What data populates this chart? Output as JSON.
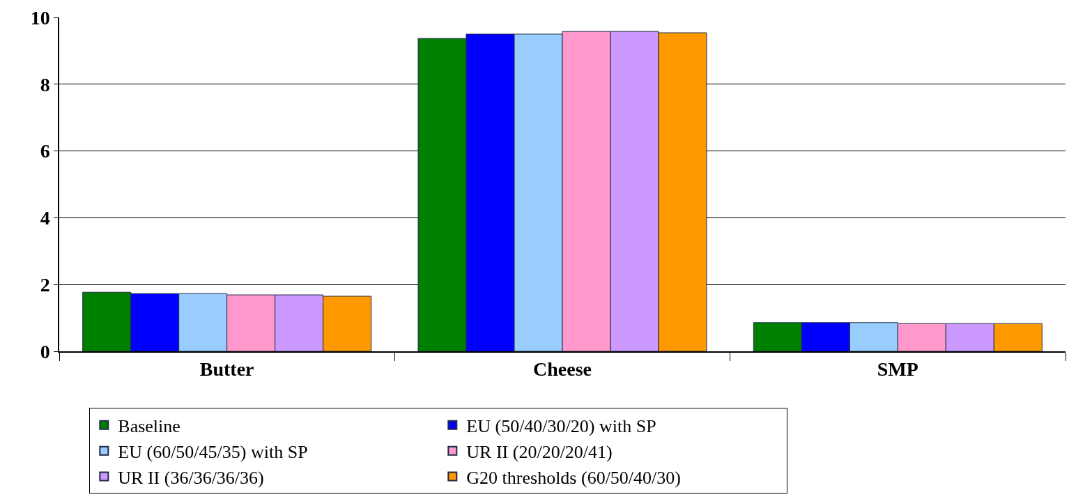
{
  "chart_data": {
    "type": "bar",
    "categories": [
      "Butter",
      "Cheese",
      "SMP"
    ],
    "series": [
      {
        "name": "Baseline",
        "color": "#008000",
        "values": [
          1.77,
          9.37,
          0.86
        ]
      },
      {
        "name": "EU (50/40/30/20) with SP",
        "color": "#0000ff",
        "values": [
          1.73,
          9.5,
          0.86
        ]
      },
      {
        "name": "EU (60/50/45/35) with SP",
        "color": "#99ccff",
        "values": [
          1.73,
          9.5,
          0.86
        ]
      },
      {
        "name": "UR II (20/20/20/41)",
        "color": "#ff99cc",
        "values": [
          1.69,
          9.58,
          0.83
        ]
      },
      {
        "name": "UR II (36/36/36/36)",
        "color": "#cc99ff",
        "values": [
          1.69,
          9.58,
          0.83
        ]
      },
      {
        "name": "G20 thresholds (60/50/40/30)",
        "color": "#ff9900",
        "values": [
          1.65,
          9.54,
          0.83
        ]
      }
    ],
    "ylim": [
      0,
      10
    ],
    "yticks": [
      0,
      2,
      4,
      6,
      8,
      10
    ],
    "grid": "y",
    "legend": "bottom"
  }
}
